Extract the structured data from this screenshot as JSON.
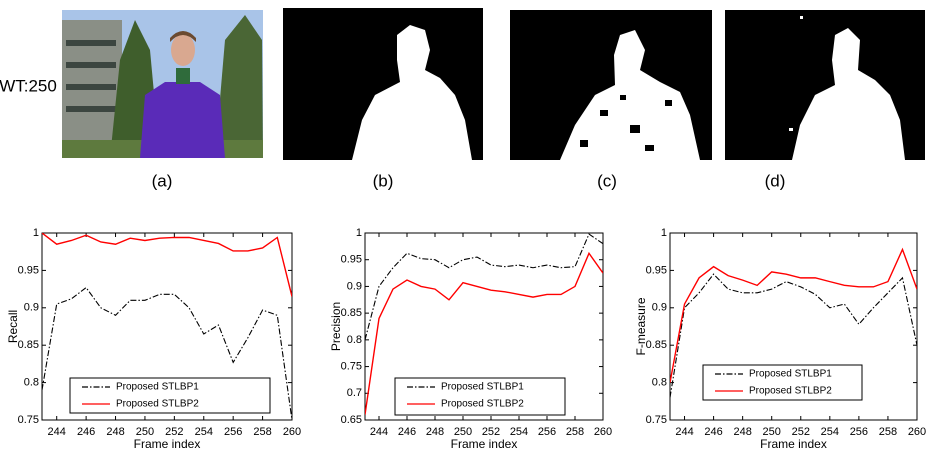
{
  "figure": {
    "row_label": "WT:250",
    "captions": [
      "(a)",
      "(b)",
      "(c)",
      "(d)"
    ]
  },
  "chart_data": [
    {
      "type": "line",
      "ylabel": "Recall",
      "xlabel": "Frame index",
      "x": [
        243,
        244,
        245,
        246,
        247,
        248,
        249,
        250,
        251,
        252,
        253,
        254,
        255,
        256,
        257,
        258,
        259,
        260
      ],
      "xlim": [
        243,
        260
      ],
      "xticks": [
        244,
        246,
        248,
        250,
        252,
        254,
        256,
        258,
        260
      ],
      "ylim": [
        0.75,
        1
      ],
      "yticks": [
        0.75,
        0.8,
        0.85,
        0.9,
        0.95,
        1
      ],
      "series": [
        {
          "name": "Proposed STLBP1",
          "color": "#000000",
          "line_style": "dashdot",
          "values": [
            0.79,
            0.905,
            0.912,
            0.927,
            0.9,
            0.89,
            0.91,
            0.91,
            0.918,
            0.918,
            0.9,
            0.865,
            0.877,
            0.827,
            0.86,
            0.897,
            0.89,
            0.75
          ]
        },
        {
          "name": "Proposed STLBP2",
          "color": "#ff0000",
          "line_style": "solid",
          "values": [
            1.0,
            0.985,
            0.99,
            0.997,
            0.988,
            0.985,
            0.993,
            0.99,
            0.993,
            0.994,
            0.994,
            0.99,
            0.986,
            0.976,
            0.976,
            0.98,
            0.994,
            0.915
          ]
        }
      ]
    },
    {
      "type": "line",
      "ylabel": "Precision",
      "xlabel": "Frame index",
      "x": [
        243,
        244,
        245,
        246,
        247,
        248,
        249,
        250,
        251,
        252,
        253,
        254,
        255,
        256,
        257,
        258,
        259,
        260
      ],
      "xlim": [
        243,
        260
      ],
      "xticks": [
        244,
        246,
        248,
        250,
        252,
        254,
        256,
        258,
        260
      ],
      "ylim": [
        0.65,
        1
      ],
      "yticks": [
        0.65,
        0.7,
        0.75,
        0.8,
        0.85,
        0.9,
        0.95,
        1
      ],
      "series": [
        {
          "name": "Proposed STLBP1",
          "color": "#000000",
          "line_style": "dashdot",
          "values": [
            0.8,
            0.9,
            0.935,
            0.962,
            0.952,
            0.95,
            0.935,
            0.95,
            0.955,
            0.94,
            0.937,
            0.94,
            0.935,
            0.94,
            0.935,
            0.937,
            0.998,
            0.98
          ]
        },
        {
          "name": "Proposed STLBP2",
          "color": "#ff0000",
          "line_style": "solid",
          "values": [
            0.66,
            0.84,
            0.895,
            0.912,
            0.9,
            0.895,
            0.875,
            0.907,
            0.9,
            0.893,
            0.89,
            0.885,
            0.88,
            0.885,
            0.885,
            0.9,
            0.962,
            0.925
          ]
        }
      ]
    },
    {
      "type": "line",
      "ylabel": "F-measure",
      "xlabel": "Frame index",
      "x": [
        243,
        244,
        245,
        246,
        247,
        248,
        249,
        250,
        251,
        252,
        253,
        254,
        255,
        256,
        257,
        258,
        259,
        260
      ],
      "xlim": [
        243,
        260
      ],
      "xticks": [
        244,
        246,
        248,
        250,
        252,
        254,
        256,
        258,
        260
      ],
      "ylim": [
        0.75,
        1
      ],
      "yticks": [
        0.75,
        0.8,
        0.85,
        0.9,
        0.95,
        1
      ],
      "series": [
        {
          "name": "Proposed STLBP1",
          "color": "#000000",
          "line_style": "dashdot",
          "values": [
            0.78,
            0.9,
            0.92,
            0.945,
            0.925,
            0.92,
            0.92,
            0.925,
            0.935,
            0.928,
            0.918,
            0.9,
            0.905,
            0.878,
            0.9,
            0.92,
            0.94,
            0.85
          ]
        },
        {
          "name": "Proposed STLBP2",
          "color": "#ff0000",
          "line_style": "solid",
          "values": [
            0.8,
            0.905,
            0.94,
            0.955,
            0.943,
            0.937,
            0.93,
            0.948,
            0.945,
            0.94,
            0.94,
            0.935,
            0.93,
            0.928,
            0.928,
            0.935,
            0.978,
            0.925
          ]
        }
      ]
    }
  ]
}
